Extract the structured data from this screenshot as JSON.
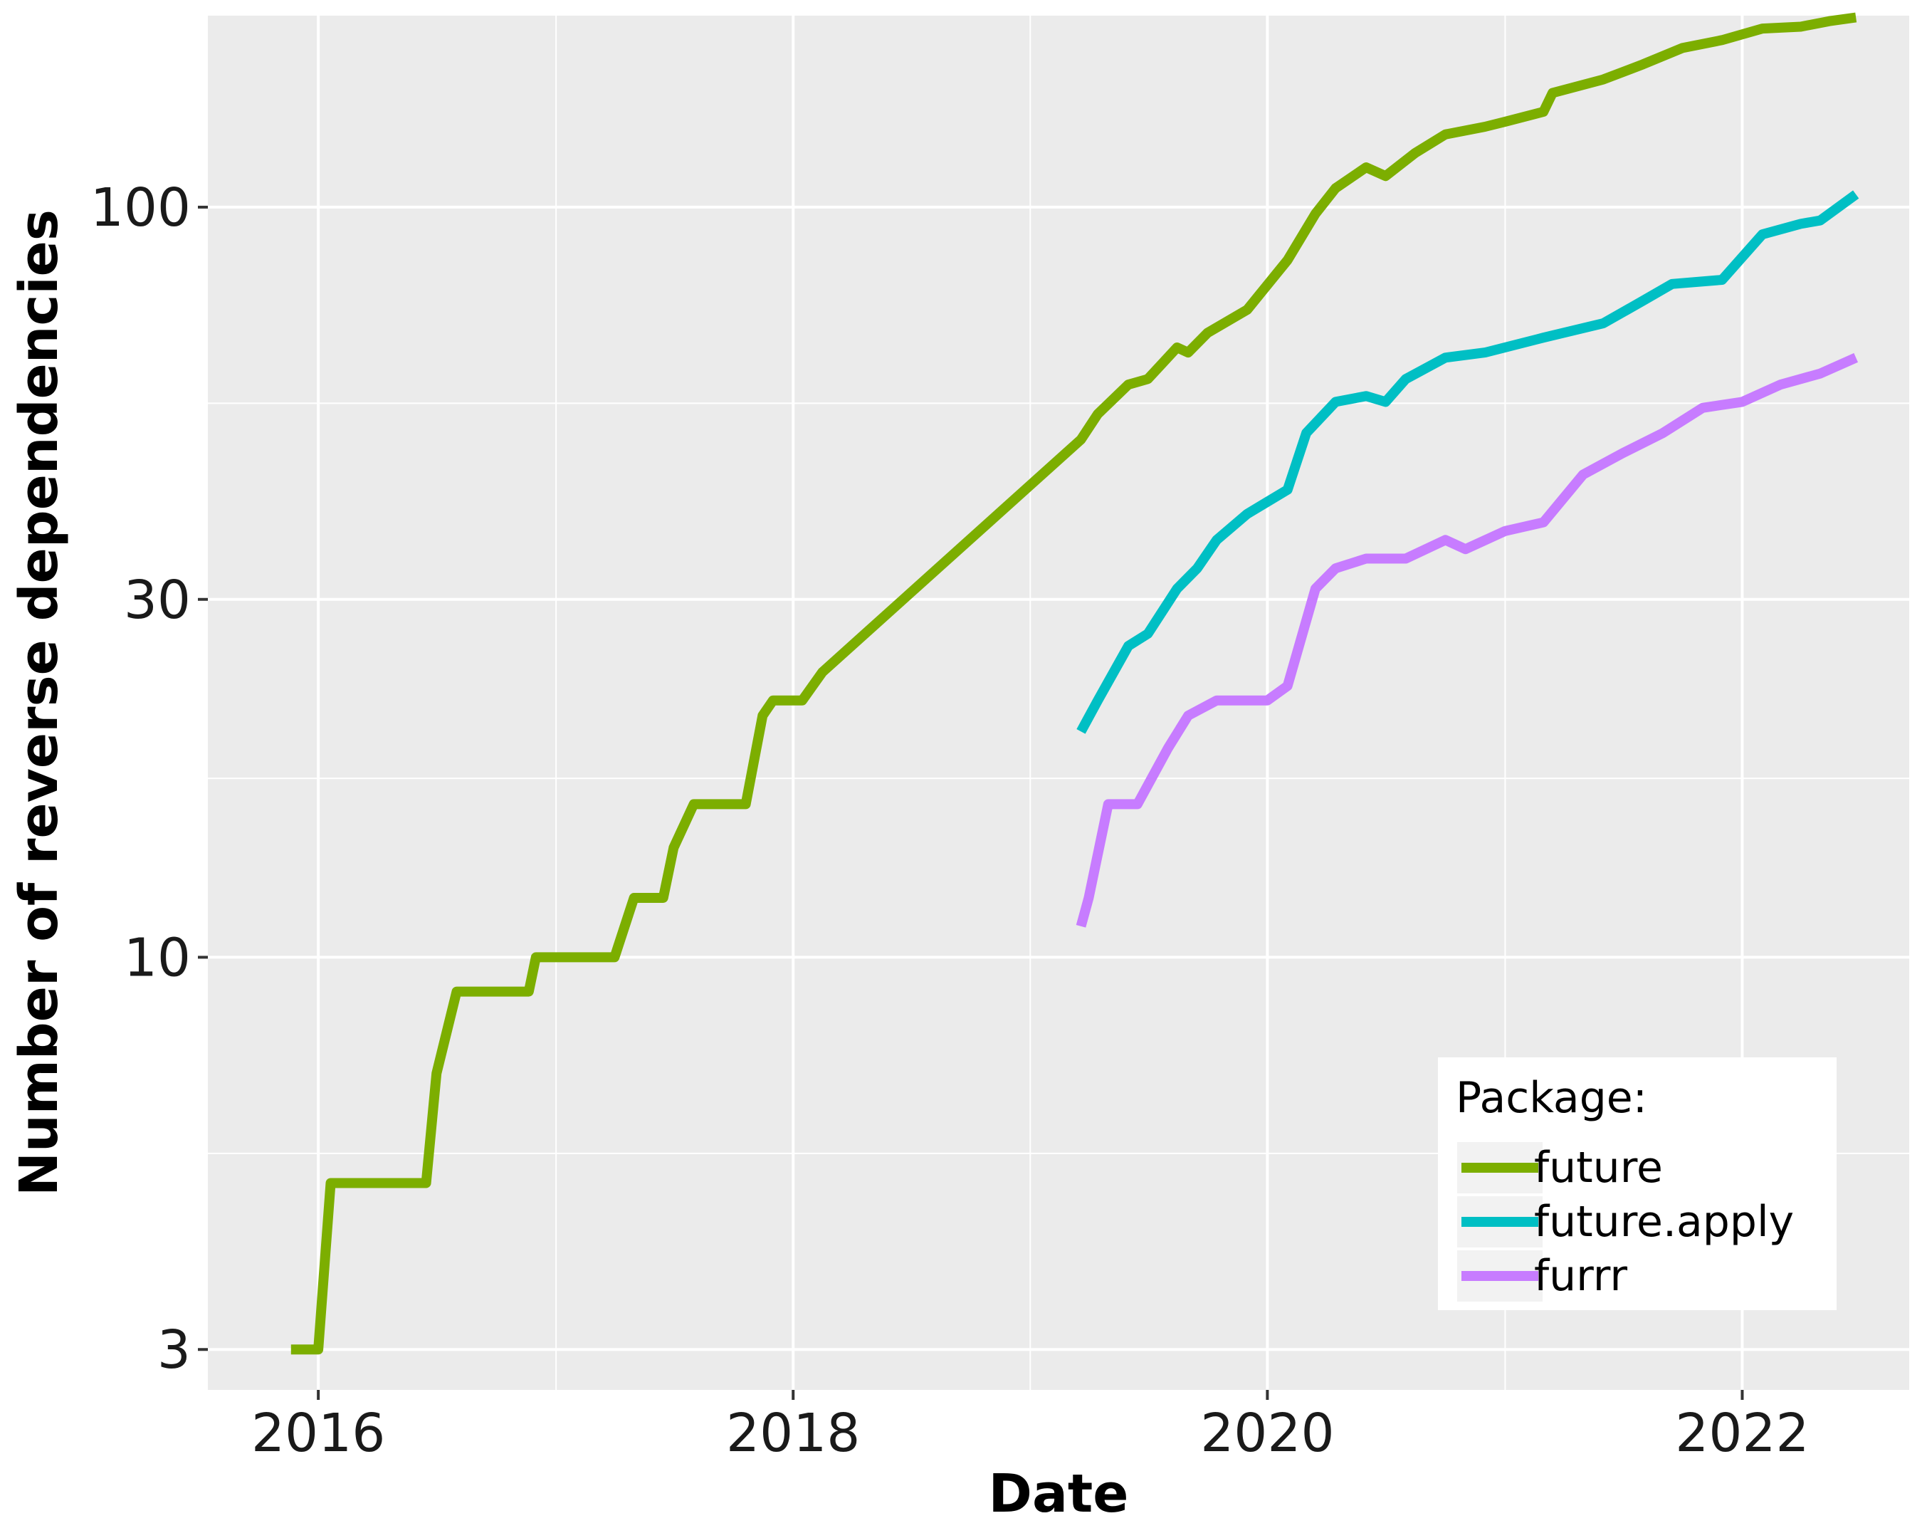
{
  "chart_data": {
    "type": "line",
    "xlabel": "Date",
    "ylabel": "Number of reverse dependencies",
    "x_ticks": [
      "2016",
      "2018",
      "2020",
      "2022"
    ],
    "y_scale": "log",
    "y_ticks": [
      3,
      10,
      30,
      100
    ],
    "y_tick_labels": [
      "3",
      "10",
      "30",
      "100"
    ],
    "xlim": [
      "2015-07-15",
      "2022-09-15"
    ],
    "ylim": [
      2.65,
      180
    ],
    "grid": true,
    "background": "#EBEBEB",
    "legend": {
      "title": "Package:",
      "position": "bottom-right",
      "entries": [
        "future",
        "future.apply",
        "furrr"
      ]
    },
    "series": [
      {
        "name": "future",
        "color": "#7CAE00",
        "points": [
          [
            "2015-11-20",
            3
          ],
          [
            "2016-01-01",
            3
          ],
          [
            "2016-01-20",
            5
          ],
          [
            "2016-06-15",
            5
          ],
          [
            "2016-07-01",
            7
          ],
          [
            "2016-08-01",
            9
          ],
          [
            "2016-11-20",
            9
          ],
          [
            "2016-12-01",
            10
          ],
          [
            "2017-04-01",
            10
          ],
          [
            "2017-05-01",
            12
          ],
          [
            "2017-06-15",
            12
          ],
          [
            "2017-07-01",
            14
          ],
          [
            "2017-08-01",
            16
          ],
          [
            "2017-10-20",
            16
          ],
          [
            "2017-11-15",
            21
          ],
          [
            "2017-12-01",
            22
          ],
          [
            "2018-01-15",
            22
          ],
          [
            "2018-02-15",
            24
          ],
          [
            "2019-03-20",
            49
          ],
          [
            "2019-04-15",
            53
          ],
          [
            "2019-06-01",
            58
          ],
          [
            "2019-07-01",
            59
          ],
          [
            "2019-08-15",
            65
          ],
          [
            "2019-09-01",
            64
          ],
          [
            "2019-10-01",
            68
          ],
          [
            "2019-12-01",
            73
          ],
          [
            "2020-02-01",
            85
          ],
          [
            "2020-03-15",
            98
          ],
          [
            "2020-04-15",
            106
          ],
          [
            "2020-06-01",
            113
          ],
          [
            "2020-07-01",
            110
          ],
          [
            "2020-08-15",
            118
          ],
          [
            "2020-10-01",
            125
          ],
          [
            "2020-12-01",
            128
          ],
          [
            "2021-01-01",
            130
          ],
          [
            "2021-03-01",
            134
          ],
          [
            "2021-03-15",
            142
          ],
          [
            "2021-06-01",
            148
          ],
          [
            "2021-08-01",
            155
          ],
          [
            "2021-10-01",
            163
          ],
          [
            "2021-12-01",
            167
          ],
          [
            "2022-02-01",
            173
          ],
          [
            "2022-04-01",
            174
          ],
          [
            "2022-05-15",
            177
          ],
          [
            "2022-06-25",
            179
          ]
        ]
      },
      {
        "name": "future.apply",
        "color": "#00BFC4",
        "points": [
          [
            "2019-03-20",
            20
          ],
          [
            "2019-04-15",
            22
          ],
          [
            "2019-06-01",
            26
          ],
          [
            "2019-07-01",
            27
          ],
          [
            "2019-08-15",
            31
          ],
          [
            "2019-09-15",
            33
          ],
          [
            "2019-10-15",
            36
          ],
          [
            "2019-12-01",
            39
          ],
          [
            "2020-02-01",
            42
          ],
          [
            "2020-03-01",
            50
          ],
          [
            "2020-04-15",
            55
          ],
          [
            "2020-06-01",
            56
          ],
          [
            "2020-07-01",
            55
          ],
          [
            "2020-08-01",
            59
          ],
          [
            "2020-10-01",
            63
          ],
          [
            "2020-12-01",
            64
          ],
          [
            "2021-03-01",
            67
          ],
          [
            "2021-06-01",
            70
          ],
          [
            "2021-08-01",
            75
          ],
          [
            "2021-09-15",
            79
          ],
          [
            "2021-12-01",
            80
          ],
          [
            "2022-02-01",
            92
          ],
          [
            "2022-04-01",
            95
          ],
          [
            "2022-05-01",
            96
          ],
          [
            "2022-06-25",
            104
          ]
        ]
      },
      {
        "name": "furrr",
        "color": "#C77CFF",
        "points": [
          [
            "2019-03-20",
            11
          ],
          [
            "2019-04-01",
            12
          ],
          [
            "2019-05-01",
            16
          ],
          [
            "2019-06-15",
            16
          ],
          [
            "2019-08-01",
            19
          ],
          [
            "2019-09-01",
            21
          ],
          [
            "2019-10-15",
            22
          ],
          [
            "2019-12-01",
            22
          ],
          [
            "2020-01-01",
            22
          ],
          [
            "2020-02-01",
            23
          ],
          [
            "2020-03-15",
            31
          ],
          [
            "2020-04-15",
            33
          ],
          [
            "2020-06-01",
            34
          ],
          [
            "2020-08-01",
            34
          ],
          [
            "2020-10-01",
            36
          ],
          [
            "2020-11-01",
            35
          ],
          [
            "2021-01-01",
            37
          ],
          [
            "2021-03-01",
            38
          ],
          [
            "2021-05-01",
            44
          ],
          [
            "2021-07-01",
            47
          ],
          [
            "2021-09-01",
            50
          ],
          [
            "2021-11-01",
            54
          ],
          [
            "2022-01-01",
            55
          ],
          [
            "2022-03-01",
            58
          ],
          [
            "2022-05-01",
            60
          ],
          [
            "2022-06-25",
            63
          ]
        ]
      }
    ]
  }
}
